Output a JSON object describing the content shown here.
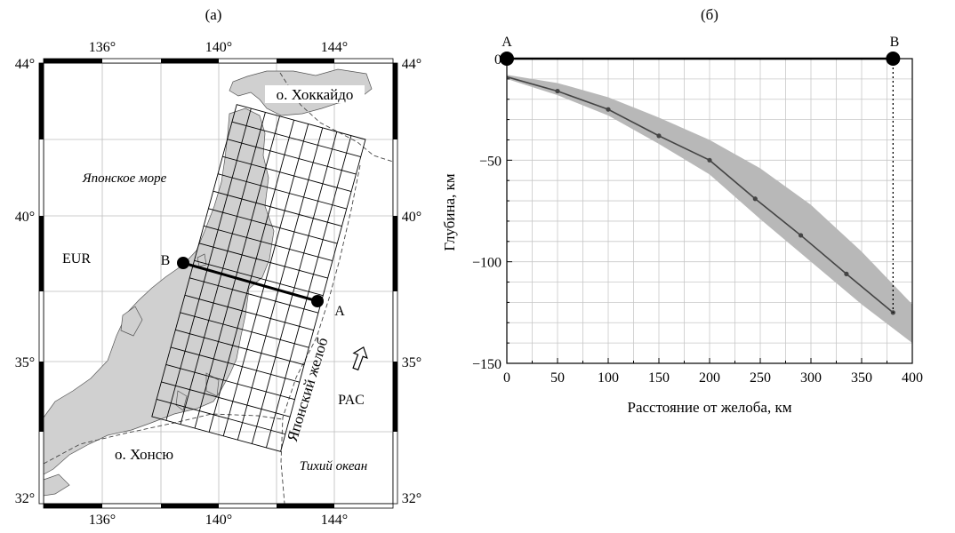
{
  "panel_a": {
    "label": "(а)",
    "lon_ticks": [
      "136°",
      "140°",
      "144°"
    ],
    "lat_ticks": [
      "44°",
      "40°",
      "35°",
      "32°"
    ],
    "texts": {
      "hokkaido": "о. Хоккайдо",
      "japan_sea": "Японское море",
      "eur": "EUR",
      "pac": "PAC",
      "trench": "Японский желоб",
      "honshu": "о. Хонсю",
      "pacific": "Тихий океан",
      "point_a": "A",
      "point_b": "B"
    }
  },
  "panel_b": {
    "label": "(б)",
    "point_a": "A",
    "point_b": "B",
    "chart_data": {
      "type": "line",
      "title": "",
      "xlabel": "Расстояние от желоба, км",
      "ylabel": "Глубина, км",
      "xlim": [
        0,
        400
      ],
      "ylim": [
        -150,
        0
      ],
      "x_ticks": [
        "0",
        "50",
        "100",
        "150",
        "200",
        "250",
        "300",
        "350",
        "400"
      ],
      "y_ticks": [
        "0",
        "−50",
        "−100",
        "−150"
      ],
      "grid": true,
      "series": [
        {
          "x": [
            0,
            50,
            100,
            150,
            200,
            245,
            290,
            335,
            381
          ],
          "y": [
            -9,
            -16,
            -25,
            -38,
            -50,
            -69,
            -87,
            -106,
            -125
          ]
        }
      ],
      "band": {
        "x": [
          0,
          50,
          100,
          150,
          200,
          250,
          300,
          350,
          400
        ],
        "upper": [
          -8,
          -12,
          -19,
          -29,
          -40,
          -54,
          -72,
          -95,
          -121
        ],
        "lower": [
          -10,
          -18,
          -28,
          -42,
          -57,
          -79,
          -100,
          -121,
          -140
        ]
      },
      "section_line": {
        "x": [
          0,
          381
        ],
        "y": [
          0,
          0
        ]
      },
      "marker_x": 381
    }
  }
}
